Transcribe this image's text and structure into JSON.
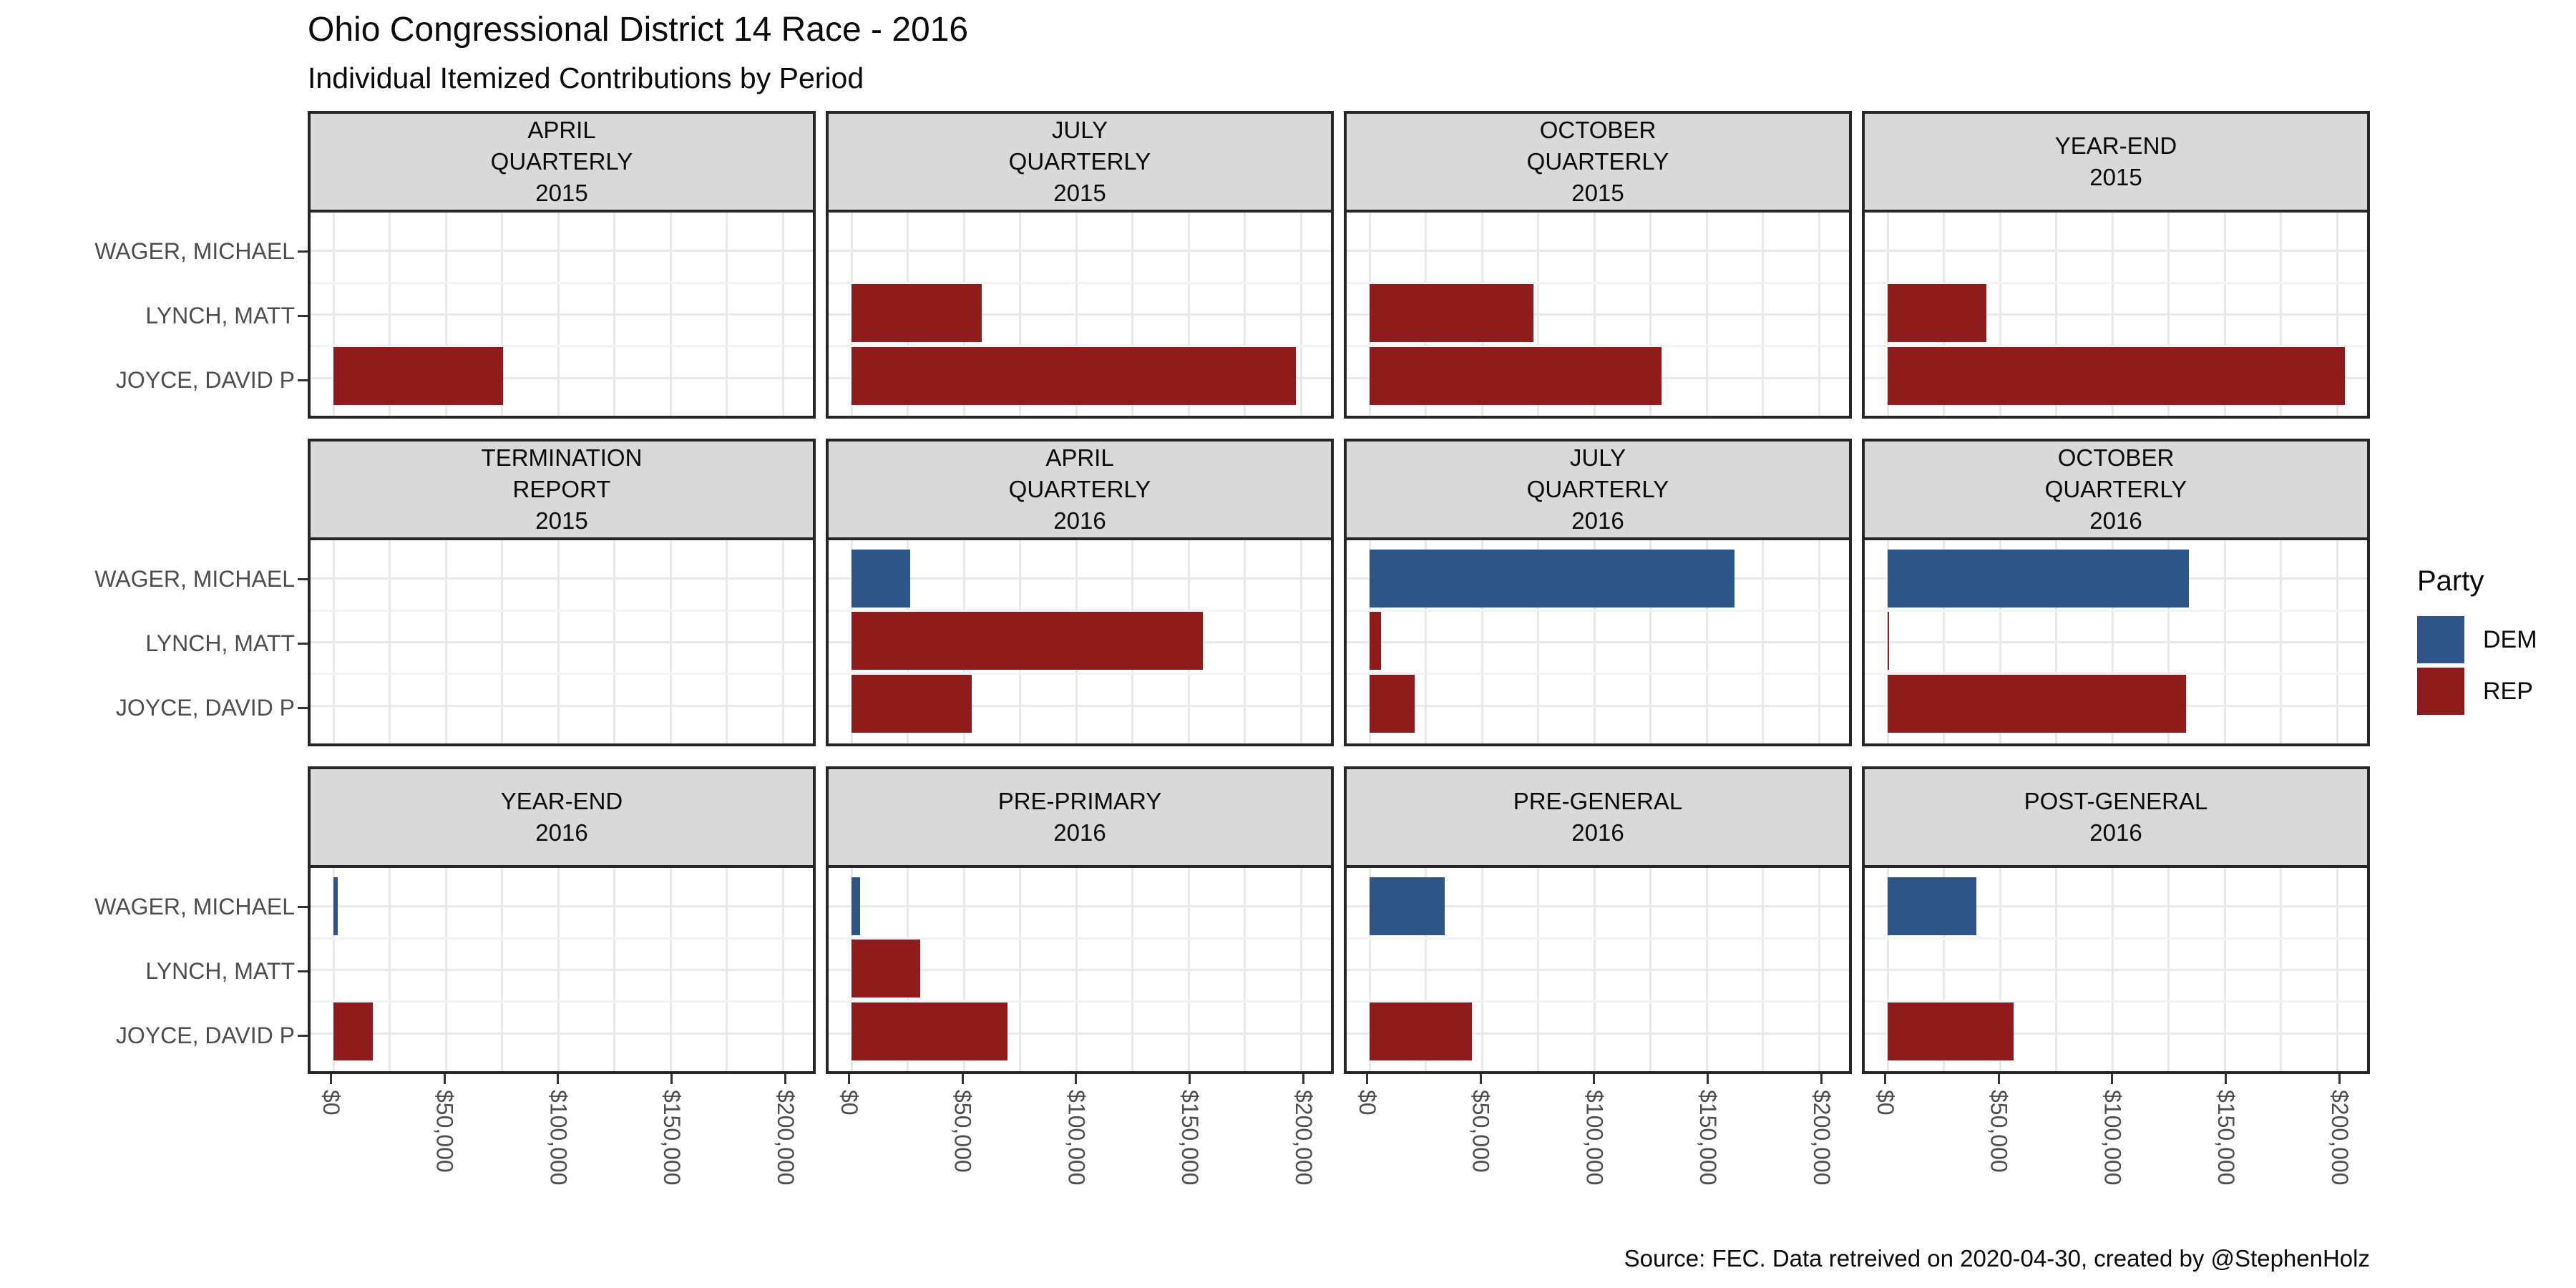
{
  "title": "Ohio Congressional District 14 Race - 2016",
  "subtitle": "Individual Itemized Contributions by Period",
  "caption": "Source: FEC. Data retreived on 2020-04-30, created by @StephenHolz",
  "legend": {
    "title": "Party",
    "items": [
      {
        "label": "DEM",
        "color": "#2F5486"
      },
      {
        "label": "REP",
        "color": "#8E1C1C"
      }
    ]
  },
  "chart_data": {
    "type": "bar",
    "orientation": "horizontal",
    "title": "Ohio Congressional District 14 Race - 2016",
    "subtitle": "Individual Itemized Contributions by Period",
    "ylabel_categories": [
      "WAGER, MICHAEL",
      "LYNCH, MATT",
      "JOYCE, DAVID P"
    ],
    "candidate_parties": [
      "DEM",
      "REP",
      "REP"
    ],
    "x_tick_labels": [
      "$0",
      "$50,000",
      "$100,000",
      "$150,000",
      "$200,000"
    ],
    "x_tick_values": [
      0,
      50000,
      100000,
      150000,
      200000
    ],
    "x_minor_values": [
      25000,
      75000,
      125000,
      175000
    ],
    "x_domain": [
      -10165,
      213460
    ],
    "grid": "on",
    "legend_position": "right",
    "panels": [
      {
        "lines": [
          "APRIL",
          "QUARTERLY",
          "2015"
        ],
        "values": [
          0,
          0,
          75500
        ]
      },
      {
        "lines": [
          "JULY",
          "QUARTERLY",
          "2015"
        ],
        "values": [
          0,
          58000,
          198000
        ]
      },
      {
        "lines": [
          "OCTOBER",
          "QUARTERLY",
          "2015"
        ],
        "values": [
          0,
          73000,
          130000
        ]
      },
      {
        "lines": [
          "YEAR-END",
          "2015"
        ],
        "values": [
          0,
          44000,
          203500
        ]
      },
      {
        "lines": [
          "TERMINATION",
          "REPORT",
          "2015"
        ],
        "values": [
          0,
          0,
          0
        ]
      },
      {
        "lines": [
          "APRIL",
          "QUARTERLY",
          "2016"
        ],
        "values": [
          26000,
          156500,
          53500
        ]
      },
      {
        "lines": [
          "JULY",
          "QUARTERLY",
          "2016"
        ],
        "values": [
          162500,
          5000,
          20000
        ]
      },
      {
        "lines": [
          "OCTOBER",
          "QUARTERLY",
          "2016"
        ],
        "values": [
          134000,
          700,
          133000
        ]
      },
      {
        "lines": [
          "YEAR-END",
          "2016"
        ],
        "values": [
          2000,
          0,
          17500
        ]
      },
      {
        "lines": [
          "PRE-PRIMARY",
          "2016"
        ],
        "values": [
          4000,
          30500,
          69500
        ]
      },
      {
        "lines": [
          "PRE-GENERAL",
          "2016"
        ],
        "values": [
          33500,
          0,
          45500
        ]
      },
      {
        "lines": [
          "POST-GENERAL",
          "2016"
        ],
        "values": [
          39500,
          0,
          56000
        ]
      }
    ]
  }
}
